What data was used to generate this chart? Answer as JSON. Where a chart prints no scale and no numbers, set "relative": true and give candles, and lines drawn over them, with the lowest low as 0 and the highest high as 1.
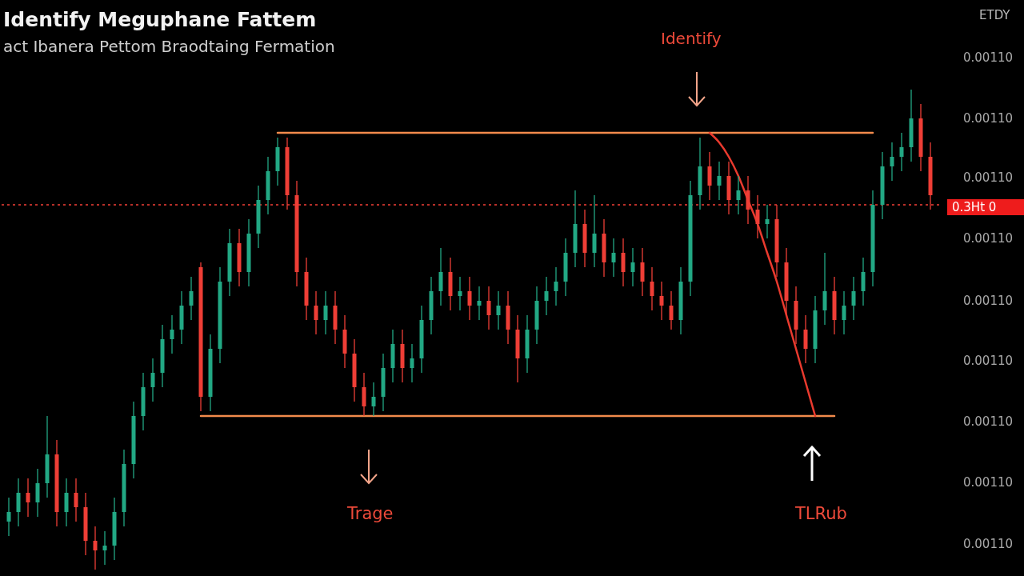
{
  "chart_data": {
    "type": "candlestick",
    "relative": true,
    "tick_labels": false,
    "title": "Identify Meguphane Fattem",
    "subtitle": "act Ibanera Pettom   Braodtaing Fermation",
    "annotations": [
      "ETDY",
      "0.00110",
      "0.00110",
      "0.00110",
      "0.00110",
      "0.00110",
      "0.00110",
      "0.00110",
      "0.00110",
      "0.00110",
      "0.3Ht 0",
      "Identify",
      "Trage",
      "TLRub"
    ],
    "categories": [
      null,
      null,
      null,
      null,
      null,
      null,
      null,
      null,
      null,
      null,
      null,
      null,
      null,
      null,
      null,
      null,
      null,
      null,
      null,
      null,
      null,
      null,
      null,
      null,
      null,
      null,
      null,
      null,
      null,
      null,
      null,
      null,
      null,
      null,
      null,
      null,
      null,
      null,
      null,
      null,
      null,
      null,
      null,
      null,
      null,
      null,
      null,
      null,
      null,
      null,
      null,
      null,
      null,
      null,
      null,
      null,
      null,
      null,
      null,
      null,
      null,
      null,
      null,
      null,
      null,
      null,
      null,
      null,
      null,
      null,
      null,
      null,
      null,
      null,
      null,
      null,
      null,
      null,
      null,
      null,
      null,
      null,
      null,
      null,
      null,
      null,
      null,
      null,
      null,
      null,
      null,
      null,
      null,
      null,
      null,
      null,
      null
    ],
    "ohlc": [
      [
        0.1,
        0.15,
        0.07,
        0.12
      ],
      [
        0.12,
        0.19,
        0.09,
        0.16
      ],
      [
        0.16,
        0.19,
        0.11,
        0.14
      ],
      [
        0.14,
        0.21,
        0.11,
        0.18
      ],
      [
        0.18,
        0.32,
        0.15,
        0.24
      ],
      [
        0.24,
        0.27,
        0.09,
        0.12
      ],
      [
        0.12,
        0.19,
        0.09,
        0.16
      ],
      [
        0.16,
        0.19,
        0.1,
        0.13
      ],
      [
        0.13,
        0.16,
        0.03,
        0.06
      ],
      [
        0.06,
        0.09,
        0.0,
        0.04
      ],
      [
        0.04,
        0.08,
        0.01,
        0.05
      ],
      [
        0.05,
        0.15,
        0.02,
        0.12
      ],
      [
        0.12,
        0.25,
        0.09,
        0.22
      ],
      [
        0.22,
        0.35,
        0.19,
        0.32
      ],
      [
        0.32,
        0.41,
        0.29,
        0.38
      ],
      [
        0.38,
        0.44,
        0.35,
        0.41
      ],
      [
        0.41,
        0.51,
        0.38,
        0.48
      ],
      [
        0.48,
        0.53,
        0.45,
        0.5
      ],
      [
        0.5,
        0.58,
        0.47,
        0.55
      ],
      [
        0.55,
        0.61,
        0.52,
        0.58
      ],
      [
        0.63,
        0.64,
        0.33,
        0.36
      ],
      [
        0.36,
        0.49,
        0.33,
        0.46
      ],
      [
        0.46,
        0.63,
        0.43,
        0.6
      ],
      [
        0.6,
        0.71,
        0.57,
        0.68
      ],
      [
        0.68,
        0.71,
        0.59,
        0.62
      ],
      [
        0.62,
        0.73,
        0.59,
        0.7
      ],
      [
        0.7,
        0.8,
        0.67,
        0.77
      ],
      [
        0.77,
        0.86,
        0.74,
        0.83
      ],
      [
        0.83,
        0.9,
        0.8,
        0.88
      ],
      [
        0.88,
        0.9,
        0.75,
        0.78
      ],
      [
        0.78,
        0.81,
        0.59,
        0.62
      ],
      [
        0.62,
        0.65,
        0.52,
        0.55
      ],
      [
        0.55,
        0.58,
        0.49,
        0.52
      ],
      [
        0.52,
        0.58,
        0.49,
        0.55
      ],
      [
        0.55,
        0.58,
        0.47,
        0.5
      ],
      [
        0.5,
        0.53,
        0.42,
        0.45
      ],
      [
        0.45,
        0.48,
        0.35,
        0.38
      ],
      [
        0.38,
        0.41,
        0.32,
        0.34
      ],
      [
        0.34,
        0.39,
        0.32,
        0.36
      ],
      [
        0.36,
        0.45,
        0.33,
        0.42
      ],
      [
        0.42,
        0.5,
        0.39,
        0.47
      ],
      [
        0.47,
        0.5,
        0.39,
        0.42
      ],
      [
        0.42,
        0.47,
        0.39,
        0.44
      ],
      [
        0.44,
        0.55,
        0.41,
        0.52
      ],
      [
        0.52,
        0.61,
        0.49,
        0.58
      ],
      [
        0.58,
        0.67,
        0.55,
        0.62
      ],
      [
        0.62,
        0.65,
        0.54,
        0.57
      ],
      [
        0.57,
        0.61,
        0.54,
        0.58
      ],
      [
        0.58,
        0.61,
        0.52,
        0.55
      ],
      [
        0.55,
        0.59,
        0.52,
        0.56
      ],
      [
        0.56,
        0.59,
        0.5,
        0.53
      ],
      [
        0.53,
        0.58,
        0.5,
        0.55
      ],
      [
        0.55,
        0.58,
        0.47,
        0.5
      ],
      [
        0.5,
        0.53,
        0.39,
        0.44
      ],
      [
        0.44,
        0.53,
        0.41,
        0.5
      ],
      [
        0.5,
        0.59,
        0.47,
        0.56
      ],
      [
        0.56,
        0.61,
        0.53,
        0.58
      ],
      [
        0.58,
        0.63,
        0.55,
        0.6
      ],
      [
        0.6,
        0.69,
        0.57,
        0.66
      ],
      [
        0.66,
        0.79,
        0.63,
        0.72
      ],
      [
        0.72,
        0.75,
        0.63,
        0.66
      ],
      [
        0.66,
        0.78,
        0.63,
        0.7
      ],
      [
        0.7,
        0.73,
        0.61,
        0.64
      ],
      [
        0.64,
        0.69,
        0.61,
        0.66
      ],
      [
        0.66,
        0.69,
        0.59,
        0.62
      ],
      [
        0.62,
        0.67,
        0.59,
        0.64
      ],
      [
        0.64,
        0.67,
        0.57,
        0.6
      ],
      [
        0.6,
        0.63,
        0.54,
        0.57
      ],
      [
        0.57,
        0.6,
        0.52,
        0.55
      ],
      [
        0.55,
        0.58,
        0.5,
        0.52
      ],
      [
        0.52,
        0.63,
        0.49,
        0.6
      ],
      [
        0.6,
        0.81,
        0.57,
        0.78
      ],
      [
        0.78,
        0.9,
        0.75,
        0.84
      ],
      [
        0.84,
        0.87,
        0.77,
        0.8
      ],
      [
        0.8,
        0.85,
        0.77,
        0.82
      ],
      [
        0.82,
        0.85,
        0.74,
        0.77
      ],
      [
        0.77,
        0.82,
        0.74,
        0.79
      ],
      [
        0.79,
        0.82,
        0.72,
        0.75
      ],
      [
        0.75,
        0.78,
        0.69,
        0.72
      ],
      [
        0.72,
        0.76,
        0.69,
        0.73
      ],
      [
        0.73,
        0.76,
        0.61,
        0.64
      ],
      [
        0.64,
        0.67,
        0.53,
        0.56
      ],
      [
        0.56,
        0.59,
        0.47,
        0.5
      ],
      [
        0.5,
        0.53,
        0.43,
        0.46
      ],
      [
        0.46,
        0.57,
        0.43,
        0.54
      ],
      [
        0.54,
        0.66,
        0.51,
        0.58
      ],
      [
        0.58,
        0.61,
        0.49,
        0.52
      ],
      [
        0.52,
        0.58,
        0.49,
        0.55
      ],
      [
        0.55,
        0.61,
        0.52,
        0.58
      ],
      [
        0.58,
        0.65,
        0.55,
        0.62
      ],
      [
        0.62,
        0.79,
        0.59,
        0.76
      ],
      [
        0.76,
        0.87,
        0.73,
        0.84
      ],
      [
        0.84,
        0.89,
        0.81,
        0.86
      ],
      [
        0.86,
        0.91,
        0.83,
        0.88
      ],
      [
        0.88,
        1.0,
        0.85,
        0.94
      ],
      [
        0.94,
        0.97,
        0.83,
        0.86
      ],
      [
        0.86,
        0.89,
        0.75,
        0.78
      ]
    ],
    "colors": [
      "#22a884",
      "#22a884",
      "#ef3e36",
      "#22a884",
      "#22a884",
      "#ef3e36",
      "#22a884",
      "#ef3e36",
      "#ef3e36",
      "#ef3e36",
      "#22a884",
      "#22a884",
      "#22a884",
      "#22a884",
      "#22a884",
      "#22a884",
      "#22a884",
      "#22a884",
      "#22a884",
      "#22a884",
      "#ef3e36",
      "#22a884",
      "#22a884",
      "#22a884",
      "#ef3e36",
      "#22a884",
      "#22a884",
      "#22a884",
      "#22a884",
      "#ef3e36",
      "#ef3e36",
      "#ef3e36",
      "#ef3e36",
      "#22a884",
      "#ef3e36",
      "#ef3e36",
      "#ef3e36",
      "#ef3e36",
      "#22a884",
      "#22a884",
      "#22a884",
      "#ef3e36",
      "#22a884",
      "#22a884",
      "#22a884",
      "#22a884",
      "#ef3e36",
      "#22a884",
      "#ef3e36",
      "#22a884",
      "#ef3e36",
      "#22a884",
      "#ef3e36",
      "#ef3e36",
      "#22a884",
      "#22a884",
      "#22a884",
      "#22a884",
      "#22a884",
      "#22a884",
      "#ef3e36",
      "#22a884",
      "#ef3e36",
      "#22a884",
      "#ef3e36",
      "#22a884",
      "#ef3e36",
      "#ef3e36",
      "#ef3e36",
      "#ef3e36",
      "#22a884",
      "#22a884",
      "#22a884",
      "#ef3e36",
      "#22a884",
      "#ef3e36",
      "#22a884",
      "#ef3e36",
      "#ef3e36",
      "#22a884",
      "#ef3e36",
      "#ef3e36",
      "#ef3e36",
      "#ef3e36",
      "#22a884",
      "#22a884",
      "#ef3e36",
      "#22a884",
      "#22a884",
      "#22a884",
      "#22a884",
      "#22a884",
      "#22a884",
      "#22a884",
      "#22a884",
      "#ef3e36",
      "#ef3e36"
    ],
    "series": [
      {
        "type": "line",
        "color": "#f28a4c",
        "values": [
          null,
          null,
          null,
          null,
          null,
          null,
          null,
          null,
          null,
          null,
          null,
          null,
          null,
          null,
          null,
          null,
          null,
          null,
          null,
          null,
          null,
          null,
          null,
          null,
          null,
          null,
          null,
          null,
          0.91,
          0.91,
          0.91,
          0.91,
          0.91,
          0.91,
          0.91,
          0.91,
          0.91,
          0.91,
          0.91,
          0.91,
          0.91,
          0.91,
          0.91,
          0.91,
          0.91,
          0.91,
          0.91,
          0.91,
          0.91,
          0.91,
          0.91,
          0.91,
          0.91,
          0.91,
          0.91,
          0.91,
          0.91,
          0.91,
          0.91,
          0.91,
          0.91,
          0.91,
          0.91,
          0.91,
          0.91,
          0.91,
          0.91,
          0.91,
          0.91,
          0.91,
          0.91,
          0.91,
          0.91,
          0.91,
          0.91,
          0.91,
          0.91,
          0.91,
          0.91,
          0.91,
          0.91,
          0.91,
          0.91,
          0.91,
          0.91,
          0.91,
          0.91,
          0.91,
          0.91,
          0.91,
          0.91,
          null,
          null,
          null,
          null,
          null,
          null
        ]
      },
      {
        "type": "line",
        "color": "#f28a4c",
        "values": [
          null,
          null,
          null,
          null,
          null,
          null,
          null,
          null,
          null,
          null,
          null,
          null,
          null,
          null,
          null,
          null,
          null,
          null,
          null,
          null,
          0.32,
          0.32,
          0.32,
          0.32,
          0.32,
          0.32,
          0.32,
          0.32,
          0.32,
          0.32,
          0.32,
          0.32,
          0.32,
          0.32,
          0.32,
          0.32,
          0.32,
          0.32,
          0.32,
          0.32,
          0.32,
          0.32,
          0.32,
          0.32,
          0.32,
          0.32,
          0.32,
          0.32,
          0.32,
          0.32,
          0.32,
          0.32,
          0.32,
          0.32,
          0.32,
          0.32,
          0.32,
          0.32,
          0.32,
          0.32,
          0.32,
          0.32,
          0.32,
          0.32,
          0.32,
          0.32,
          0.32,
          0.32,
          0.32,
          0.32,
          0.32,
          0.32,
          0.32,
          0.32,
          0.32,
          0.32,
          0.32,
          0.32,
          0.32,
          0.32,
          0.32,
          0.32,
          0.32,
          0.32,
          0.32,
          0.32,
          0.32,
          null,
          null,
          null,
          null,
          null,
          null,
          null,
          null,
          null,
          null
        ]
      },
      {
        "type": "line",
        "color": "#ea3a2e",
        "values": [
          null,
          null,
          null,
          null,
          null,
          null,
          null,
          null,
          null,
          null,
          null,
          null,
          null,
          null,
          null,
          null,
          null,
          null,
          null,
          null,
          null,
          null,
          null,
          null,
          null,
          null,
          null,
          null,
          null,
          null,
          null,
          null,
          null,
          null,
          null,
          null,
          null,
          null,
          null,
          null,
          null,
          null,
          null,
          null,
          null,
          null,
          null,
          null,
          null,
          null,
          null,
          null,
          null,
          null,
          null,
          null,
          null,
          null,
          null,
          null,
          null,
          null,
          null,
          null,
          null,
          null,
          null,
          null,
          null,
          null,
          null,
          null,
          null,
          0.91,
          0.89,
          0.86,
          0.82,
          0.77,
          0.72,
          0.66,
          0.6,
          0.53,
          0.46,
          0.39,
          0.32,
          null,
          null,
          null,
          null,
          null,
          null,
          null,
          null,
          null,
          null,
          null,
          null
        ]
      }
    ],
    "ref_lines": [
      {
        "axis": "y",
        "value": 0.76,
        "color": "#b8302a",
        "line_style": "dotted"
      }
    ]
  }
}
